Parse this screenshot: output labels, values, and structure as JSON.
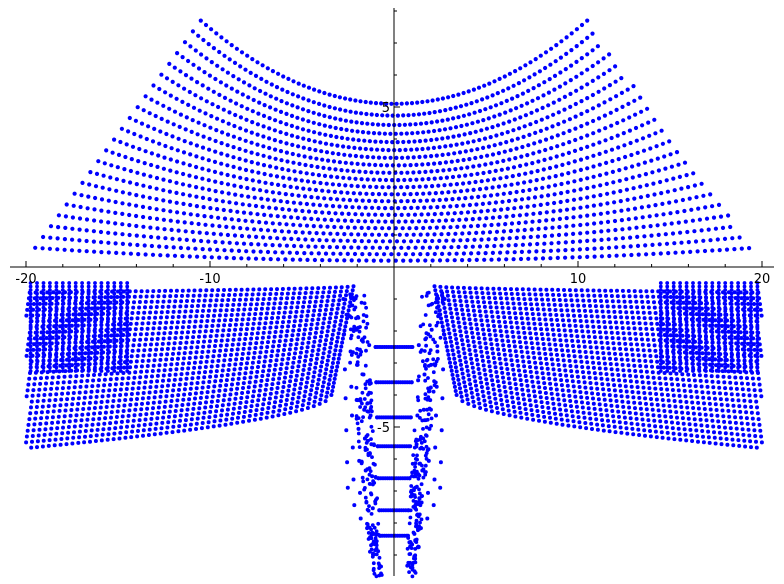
{
  "chart_data": {
    "type": "scatter",
    "title": "",
    "xlabel": "",
    "ylabel": "",
    "xlim": [
      -20,
      20
    ],
    "ylim": [
      -10,
      8
    ],
    "x_ticks": [
      -20,
      -10,
      10,
      20
    ],
    "y_ticks": [
      5,
      -5
    ],
    "x_tick_labels": [
      "-20",
      "-10",
      "10",
      "20"
    ],
    "y_tick_labels": [
      "5",
      "-5"
    ],
    "grid": false,
    "legend": "none",
    "marker_color": "#0000ff",
    "series": [
      {
        "family": "upper-arcs",
        "count": 22,
        "center_y_range": [
          0.2,
          5.1
        ],
        "endpoint_y": 7.7,
        "endpoint_x_range": [
          0.6,
          10.5
        ]
      },
      {
        "family": "side-fans",
        "count": 28,
        "x_range": [
          -20,
          20
        ],
        "y_range": [
          -6.2,
          -0.8
        ]
      },
      {
        "family": "central-steps",
        "levels_y": [
          -2.5,
          -3.6,
          -4.7,
          -5.6,
          -6.6,
          -7.6,
          -8.4
        ],
        "flat_half_width": 1.0
      }
    ]
  },
  "axes_style": {
    "axis_color": "#000000"
  }
}
